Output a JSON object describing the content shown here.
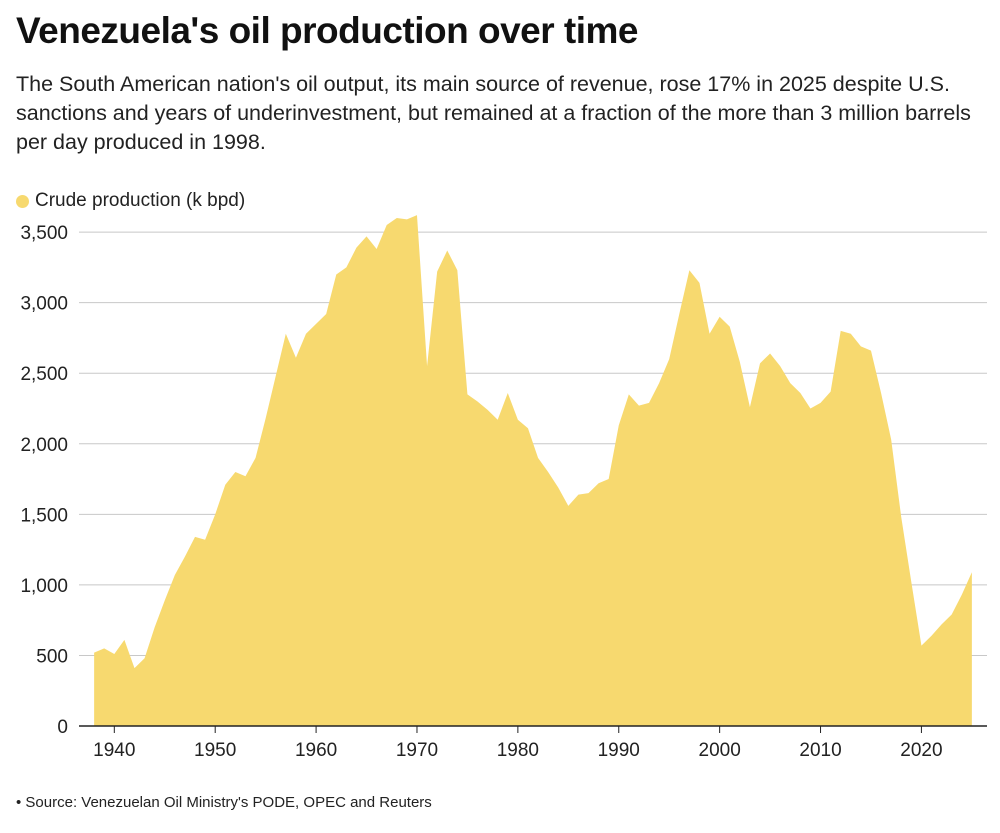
{
  "header": {
    "title": "Venezuela's oil production over time",
    "subtitle": "The South American nation's oil output, its main source of revenue, rose 17% in 2025 despite U.S. sanctions and years of underinvestment, but remained at a fraction of the more than 3 million barrels per day produced in 1998."
  },
  "legend": {
    "label": "Crude production (k bpd)",
    "color": "#F7D96F"
  },
  "footer": {
    "source": "• Source: Venezuelan Oil Ministry's PODE, OPEC and Reuters"
  },
  "chart_data": {
    "type": "area",
    "title": "Venezuela's oil production over time",
    "xlabel": "",
    "ylabel": "Crude production (k bpd)",
    "xlim": [
      1936.5,
      2026.5
    ],
    "ylim": [
      0,
      3600
    ],
    "grid": true,
    "color": "#F7D96F",
    "x_ticks": [
      1940,
      1950,
      1960,
      1970,
      1980,
      1990,
      2000,
      2010,
      2020
    ],
    "y_ticks": [
      0,
      500,
      1000,
      1500,
      2000,
      2500,
      3000,
      3500
    ],
    "y_tick_labels": [
      "0",
      "500",
      "1,000",
      "1,500",
      "2,000",
      "2,500",
      "3,000",
      "3,500"
    ],
    "series": [
      {
        "name": "Crude production (k bpd)",
        "x": [
          1938,
          1939,
          1940,
          1941,
          1942,
          1943,
          1944,
          1945,
          1946,
          1947,
          1948,
          1949,
          1950,
          1951,
          1952,
          1953,
          1954,
          1955,
          1956,
          1957,
          1958,
          1959,
          1960,
          1961,
          1962,
          1963,
          1964,
          1965,
          1966,
          1967,
          1968,
          1969,
          1970,
          1971,
          1972,
          1973,
          1974,
          1975,
          1976,
          1977,
          1978,
          1979,
          1980,
          1981,
          1982,
          1983,
          1984,
          1985,
          1986,
          1987,
          1988,
          1989,
          1990,
          1991,
          1992,
          1993,
          1994,
          1995,
          1996,
          1997,
          1998,
          1999,
          2000,
          2001,
          2002,
          2003,
          2004,
          2005,
          2006,
          2007,
          2008,
          2009,
          2010,
          2011,
          2012,
          2013,
          2014,
          2015,
          2016,
          2017,
          2018,
          2019,
          2020,
          2021,
          2022,
          2023,
          2024,
          2025
        ],
        "values": [
          520,
          550,
          510,
          610,
          410,
          480,
          700,
          890,
          1070,
          1200,
          1340,
          1320,
          1500,
          1710,
          1800,
          1770,
          1900,
          2180,
          2480,
          2780,
          2610,
          2780,
          2850,
          2920,
          3200,
          3250,
          3390,
          3470,
          3380,
          3550,
          3600,
          3590,
          3620,
          2550,
          3220,
          3370,
          3230,
          2350,
          2300,
          2240,
          2170,
          2360,
          2170,
          2110,
          1900,
          1800,
          1690,
          1560,
          1640,
          1650,
          1720,
          1750,
          2130,
          2350,
          2270,
          2290,
          2430,
          2600,
          2920,
          3230,
          3140,
          2780,
          2900,
          2830,
          2580,
          2260,
          2570,
          2640,
          2550,
          2430,
          2360,
          2250,
          2290,
          2370,
          2800,
          2780,
          2690,
          2660,
          2360,
          2030,
          1480,
          1020,
          570,
          640,
          720,
          790,
          930,
          1090
        ]
      }
    ]
  }
}
